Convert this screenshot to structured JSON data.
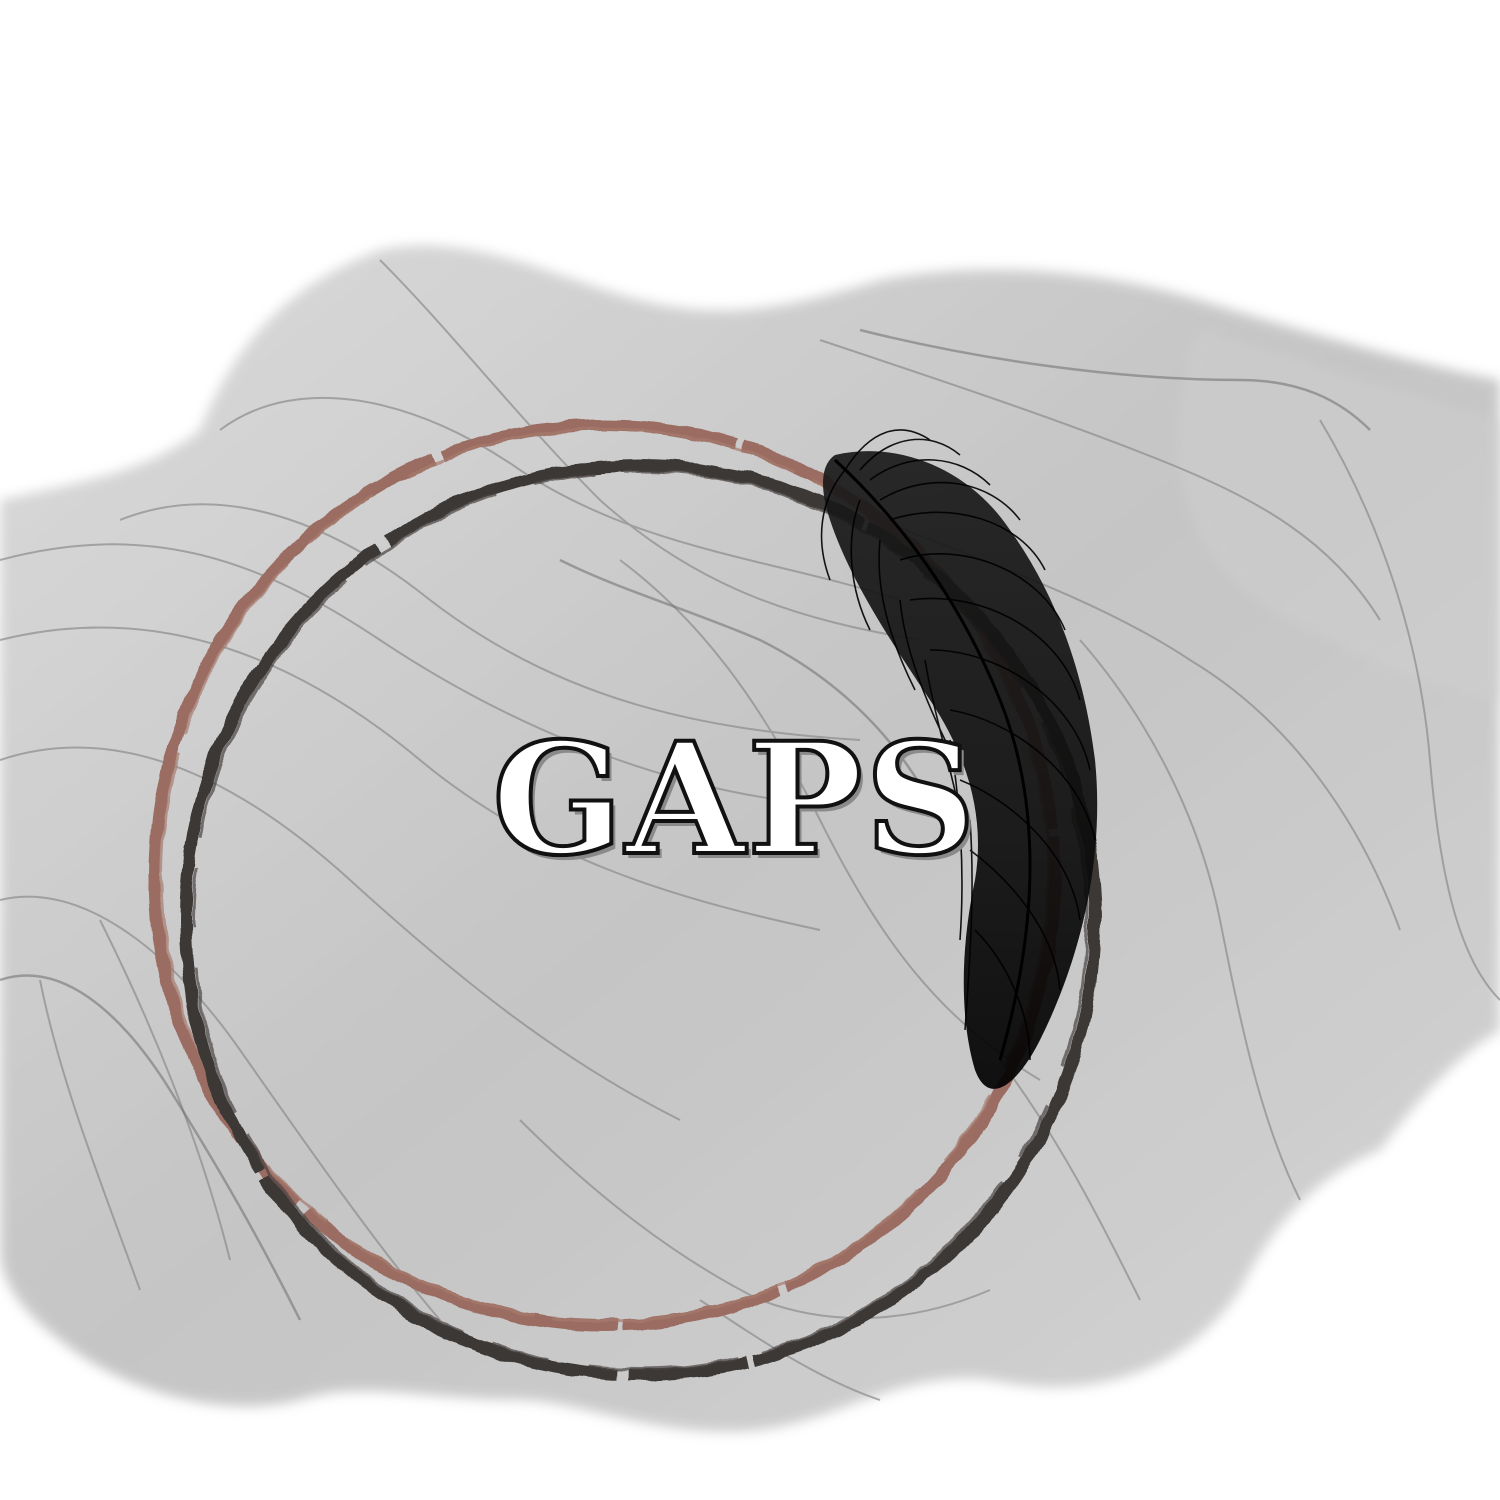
{
  "logo": {
    "wordmark": "GAPS"
  },
  "colors": {
    "background": "#ffffff",
    "ink_wash": "#9a9a9a",
    "outer_ring": "#9b6d62",
    "inner_ring": "#3b3734",
    "feather": "#111111",
    "text_outline": "#111111",
    "text_shadow": "#8a8a8a"
  },
  "icons": {
    "ring_outer": "rose-brush-ring",
    "ring_inner": "dark-brush-ring",
    "feather": "feather-icon"
  }
}
